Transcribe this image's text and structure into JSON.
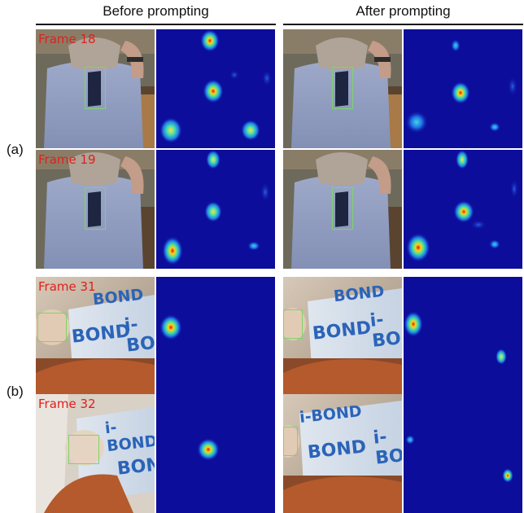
{
  "columns": {
    "before": "Before prompting",
    "after": "After prompting"
  },
  "rows": {
    "a": "(a)",
    "b": "(b)"
  },
  "frames": {
    "a_top": "Frame 18",
    "a_bottom": "Frame 19",
    "b_top": "Frame 31",
    "b_bottom": "Frame 32"
  },
  "scene_text": {
    "bond": "BOND",
    "ibond": "i-BOND",
    "ibo": "i-BO"
  },
  "colors": {
    "heatmap_background": "#0d0d9b",
    "label_red": "#e0201c",
    "box_green": "#7ed46a"
  }
}
